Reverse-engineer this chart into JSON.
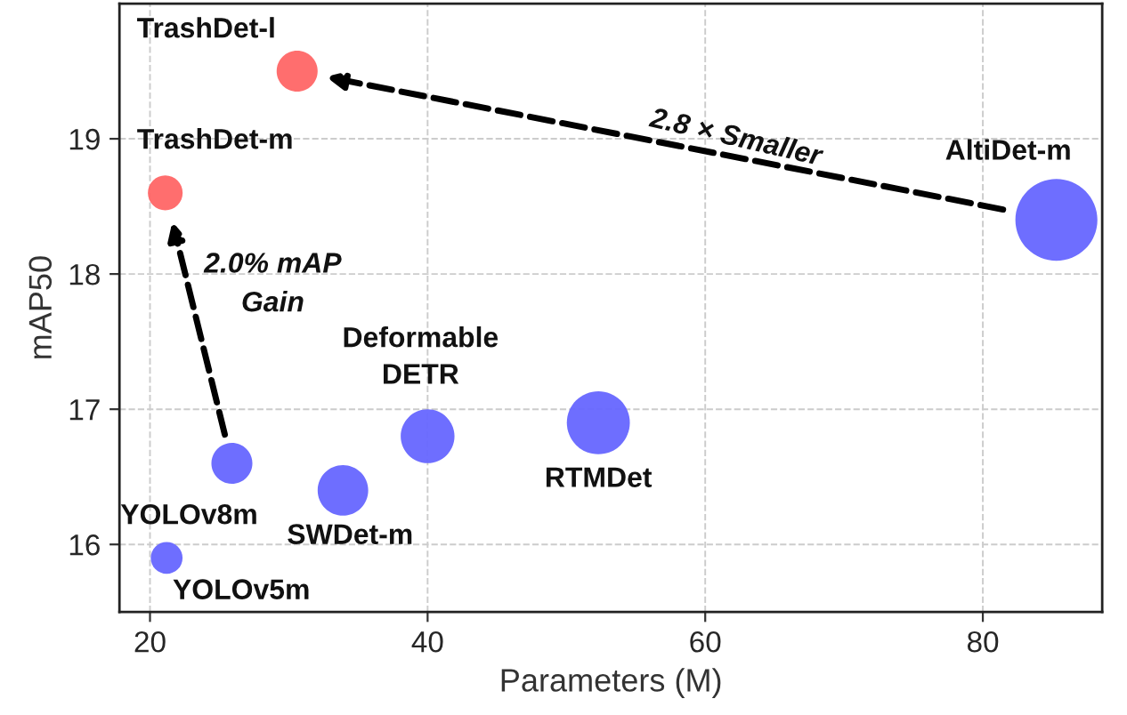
{
  "chart_data": {
    "type": "bubble",
    "xlabel": "Parameters (M)",
    "ylabel": "mAP50",
    "xlim": [
      17.8,
      88.6
    ],
    "ylim": [
      15.5,
      20.0
    ],
    "xticks": [
      20,
      40,
      60,
      80
    ],
    "yticks": [
      16,
      17,
      18,
      19
    ],
    "grid": true,
    "legend": false,
    "series": [
      {
        "color": "#ff6666",
        "x": [
          30.6,
          21.1
        ],
        "values": [
          19.5,
          18.6
        ],
        "sizes": [
          0.25,
          0.18
        ]
      },
      {
        "color": "#6666ff",
        "x": [
          85.3,
          25.9,
          21.2,
          33.9,
          40.0,
          52.3
        ],
        "values": [
          18.4,
          16.6,
          15.9,
          16.4,
          16.8,
          16.9
        ],
        "sizes": [
          1,
          0.25,
          0.15,
          0.38,
          0.43,
          0.59
        ]
      }
    ],
    "annotations": [
      "TrashDet-l",
      "TrashDet-m",
      "AltiDet-m",
      "YOLOv8m",
      "YOLOv5m",
      "SWDet-m",
      "Deformable\nDETR",
      "RTMDet",
      "2.8 × Smaller",
      "2.0% mAP\nGain"
    ]
  }
}
